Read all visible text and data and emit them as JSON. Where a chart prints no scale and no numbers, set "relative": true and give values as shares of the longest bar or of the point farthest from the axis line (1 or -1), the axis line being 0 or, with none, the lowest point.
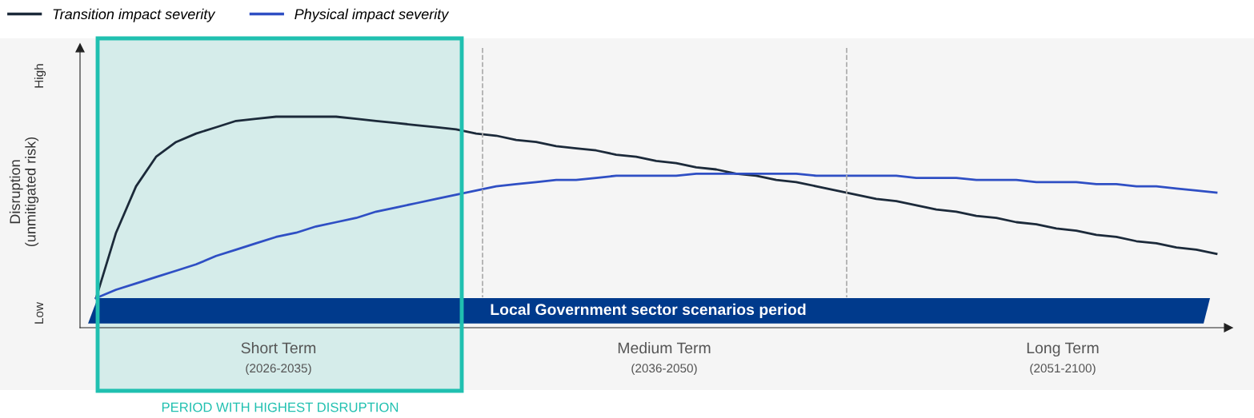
{
  "chart_data": {
    "type": "line",
    "relative": true,
    "legend": "top left",
    "ylabel": "Disruption\n(unmitigated risk)",
    "categories": [
      null,
      null,
      null,
      null,
      null,
      null,
      null,
      null,
      null,
      null,
      null,
      null,
      null,
      null,
      null,
      null,
      null,
      null,
      null,
      null,
      null,
      null,
      null,
      null,
      null,
      null,
      null,
      null,
      null,
      null,
      null,
      null,
      null,
      null,
      null,
      null,
      null,
      null,
      null,
      null,
      null,
      null,
      null,
      null,
      null,
      null,
      null,
      null,
      null,
      null,
      null,
      null,
      null,
      null,
      null,
      null,
      null
    ],
    "series": [
      {
        "name": "Transition impact severity",
        "color": "#1c2a3a",
        "values": [
          0.14,
          0.45,
          0.67,
          0.81,
          0.88,
          0.92,
          0.95,
          0.98,
          0.99,
          1.0,
          1.0,
          1.0,
          1.0,
          0.99,
          0.98,
          0.97,
          0.96,
          0.95,
          0.94,
          0.92,
          0.91,
          0.89,
          0.88,
          0.86,
          0.85,
          0.84,
          0.82,
          0.81,
          0.79,
          0.78,
          0.76,
          0.75,
          0.73,
          0.72,
          0.7,
          0.69,
          0.67,
          0.65,
          0.63,
          0.61,
          0.6,
          0.58,
          0.56,
          0.55,
          0.53,
          0.52,
          0.5,
          0.49,
          0.47,
          0.46,
          0.44,
          0.43,
          0.41,
          0.4,
          0.38,
          0.37,
          0.35
        ]
      },
      {
        "name": "Physical impact severity",
        "color": "#2f4fc4",
        "values": [
          0.14,
          0.18,
          0.21,
          0.24,
          0.27,
          0.3,
          0.34,
          0.37,
          0.4,
          0.43,
          0.45,
          0.48,
          0.5,
          0.52,
          0.55,
          0.57,
          0.59,
          0.61,
          0.63,
          0.65,
          0.67,
          0.68,
          0.69,
          0.7,
          0.7,
          0.71,
          0.72,
          0.72,
          0.72,
          0.72,
          0.73,
          0.73,
          0.73,
          0.73,
          0.73,
          0.73,
          0.72,
          0.72,
          0.72,
          0.72,
          0.72,
          0.71,
          0.71,
          0.71,
          0.7,
          0.7,
          0.7,
          0.69,
          0.69,
          0.69,
          0.68,
          0.68,
          0.67,
          0.67,
          0.66,
          0.65,
          0.64
        ]
      }
    ],
    "bands": [
      {
        "axis": "y",
        "from": 0.02,
        "to": 0.14,
        "label": "Local Government sector scenarios period",
        "color": "#003a8c"
      }
    ],
    "annotations": [
      "Low",
      "High",
      "Short Term",
      "(2026-2035)",
      "Medium Term",
      "(2036-2050)",
      "Long Term",
      "(2051-2100)",
      "PERIOD WITH HIGHEST DISRUPTION"
    ]
  }
}
